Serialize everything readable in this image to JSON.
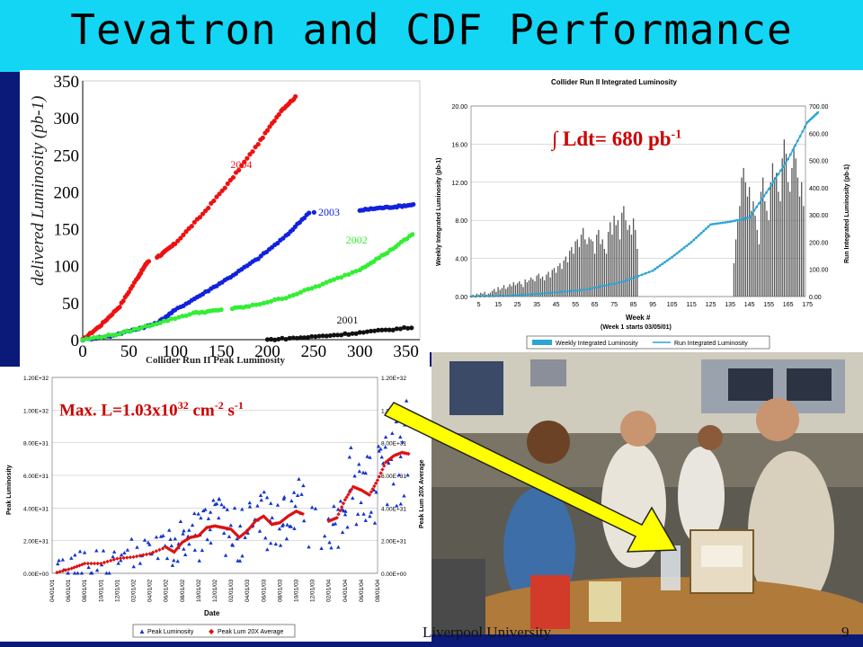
{
  "slide": {
    "title": "Tevatron and CDF Performance",
    "footer": "Liverpool University",
    "page_number": "9",
    "colors": {
      "title_bg": "#13d6f4",
      "slide_bg": "#0b1a78",
      "annotation_red": "#cc0000",
      "arrow_yellow": "#ffff00"
    }
  },
  "annotations": {
    "integrated": {
      "prefix": "∫ Ldt= 680 pb",
      "sup": "-1"
    },
    "peak": {
      "prefix": "Max. L=1.03x10",
      "sup1": "32",
      "mid": " cm",
      "sup2": "-2",
      "mid2": " s",
      "sup3": "-1"
    }
  },
  "chart_data": [
    {
      "type": "line",
      "title": "",
      "ylabel": "delivered Luminosity (pb-1)",
      "xlabel": "",
      "xlim": [
        0,
        365
      ],
      "ylim": [
        0,
        350
      ],
      "xticks": [
        "0",
        "50",
        "100",
        "150",
        "200",
        "250",
        "300",
        "350"
      ],
      "yticks": [
        "0",
        "50",
        "100",
        "150",
        "200",
        "250",
        "300",
        "350"
      ],
      "series": [
        {
          "name": "2004",
          "color": "#ee1111",
          "x": [
            0,
            20,
            40,
            60,
            70,
            85,
            100,
            130,
            160,
            190,
            215,
            232
          ],
          "y": [
            0,
            20,
            45,
            85,
            105,
            115,
            130,
            170,
            215,
            265,
            310,
            330
          ]
        },
        {
          "name": "2003",
          "color": "#1122dd",
          "x": [
            0,
            30,
            60,
            80,
            100,
            130,
            160,
            190,
            220,
            245,
            300,
            320,
            340,
            360
          ],
          "y": [
            0,
            5,
            15,
            22,
            40,
            62,
            85,
            110,
            140,
            172,
            175,
            178,
            180,
            183
          ]
        },
        {
          "name": "2002",
          "color": "#33ee33",
          "x": [
            0,
            40,
            80,
            120,
            150,
            180,
            220,
            260,
            300,
            330,
            360
          ],
          "y": [
            0,
            8,
            22,
            36,
            40,
            45,
            57,
            75,
            95,
            118,
            145
          ]
        },
        {
          "name": "2001",
          "color": "#111111",
          "x": [
            200,
            240,
            280,
            320,
            360
          ],
          "y": [
            0,
            3,
            7,
            12,
            17
          ]
        }
      ],
      "source_caption": "Collider Run II Peak Luminosity"
    },
    {
      "type": "bar",
      "title": "Collider Run II Integrated Luminosity",
      "xlabel": "Week #",
      "xlabel2": "(Week 1 starts 03/05/01)",
      "ylabel": "Weekly Integrated Luminosity (pb-1)",
      "ylabel_right": "Run Integrated Luminosity (pb-1)",
      "ylim": [
        0,
        20
      ],
      "ylim_right": [
        0,
        700
      ],
      "yticks": [
        "0.00",
        "4.00",
        "8.00",
        "12.00",
        "16.00",
        "20.00"
      ],
      "yticks_right": [
        "0.00",
        "100.00",
        "200.00",
        "300.00",
        "400.00",
        "500.00",
        "600.00",
        "700.00"
      ],
      "xticks": [
        "5",
        "15",
        "25",
        "35",
        "45",
        "55",
        "65",
        "75",
        "85",
        "95",
        "105",
        "115",
        "125",
        "135",
        "145",
        "155",
        "165",
        "175"
      ],
      "weekly_values": [
        0.1,
        0.2,
        0.1,
        0.3,
        0.2,
        0.4,
        0.3,
        0.5,
        0.2,
        0.3,
        0.4,
        0.6,
        0.8,
        0.5,
        1.0,
        0.7,
        0.9,
        1.2,
        0.8,
        1.0,
        1.3,
        1.1,
        1.5,
        1.2,
        1.4,
        1.6,
        1.3,
        1.0,
        1.8,
        1.5,
        1.7,
        2.0,
        1.8,
        1.6,
        2.2,
        2.4,
        1.9,
        2.1,
        1.7,
        2.3,
        2.6,
        2.0,
        2.8,
        3.0,
        2.5,
        3.2,
        3.5,
        2.9,
        3.8,
        4.2,
        3.6,
        4.8,
        5.2,
        4.5,
        5.8,
        6.0,
        5.2,
        6.5,
        7.2,
        6.0,
        5.5,
        6.2,
        6.0,
        5.8,
        4.5,
        6.5,
        7.0,
        5.5,
        6.0,
        5.0,
        4.5,
        6.8,
        7.8,
        6.5,
        8.5,
        7.5,
        8.0,
        6.0,
        8.8,
        9.5,
        8.0,
        7.0,
        7.5,
        6.5,
        8.2,
        7.0,
        5.0,
        0,
        0,
        0,
        0,
        0,
        0,
        0,
        0,
        0,
        0,
        0,
        0,
        0,
        0,
        0,
        0,
        0,
        0,
        0,
        0,
        0,
        0,
        0,
        0,
        0,
        0,
        0,
        0,
        0,
        0,
        0,
        0,
        0,
        0,
        0,
        0,
        0,
        0,
        0,
        0,
        0,
        0,
        0,
        0,
        0,
        0,
        0,
        0,
        0,
        3.5,
        6.0,
        8.0,
        9.5,
        12.5,
        13.5,
        12.0,
        10.5,
        11.5,
        9.0,
        10.0,
        8.5,
        7.0,
        5.5,
        11.0,
        12.5,
        10.0,
        9.0,
        8.0,
        12.0,
        14.0,
        12.5,
        13.0,
        11.0,
        10.0,
        14.5,
        16.5,
        15.0,
        12.0,
        11.0,
        13.5,
        15.8,
        14.5,
        12.5,
        10.5,
        12.0,
        9.5
      ],
      "run_integrated": [
        [
          1,
          0
        ],
        [
          20,
          3
        ],
        [
          40,
          12
        ],
        [
          60,
          25
        ],
        [
          80,
          55
        ],
        [
          95,
          95
        ],
        [
          105,
          145
        ],
        [
          115,
          200
        ],
        [
          125,
          265
        ],
        [
          135,
          275
        ],
        [
          145,
          290
        ],
        [
          155,
          395
        ],
        [
          165,
          505
        ],
        [
          175,
          640
        ],
        [
          181,
          680
        ]
      ],
      "legend": [
        "Weekly Integrated Luminosity",
        "Run Integrated Luminosity"
      ]
    },
    {
      "type": "scatter",
      "title": "",
      "xlabel": "Date",
      "ylabel": "Peak Luminosity",
      "ylabel_right": "Peak Lum 20X Average",
      "ylim": [
        0,
        1.2e+32
      ],
      "yticks": [
        "0.00E+00",
        "2.00E+31",
        "4.00E+31",
        "6.00E+31",
        "8.00E+31",
        "1.00E+32",
        "1.20E+32"
      ],
      "xticks": [
        "04/01/01",
        "06/01/01",
        "08/01/01",
        "10/01/01",
        "12/01/01",
        "02/01/02",
        "04/01/02",
        "06/01/02",
        "08/01/02",
        "10/01/02",
        "12/01/02",
        "02/01/03",
        "04/01/03",
        "06/01/03",
        "08/01/03",
        "10/01/03",
        "12/01/03",
        "02/01/04",
        "04/01/04",
        "06/01/04",
        "08/01/04"
      ],
      "average_points": [
        [
          0.3,
          0.05
        ],
        [
          1.2,
          0.3
        ],
        [
          2,
          0.6
        ],
        [
          3,
          0.6
        ],
        [
          4,
          0.9
        ],
        [
          5,
          1.0
        ],
        [
          6,
          1.2
        ],
        [
          7,
          1.6
        ],
        [
          7.5,
          1.3
        ],
        [
          8,
          1.9
        ],
        [
          8.5,
          2.2
        ],
        [
          9,
          2.3
        ],
        [
          9.5,
          2.8
        ],
        [
          10,
          2.9
        ],
        [
          10.5,
          2.8
        ],
        [
          11,
          2.7
        ],
        [
          11.5,
          2.2
        ],
        [
          12,
          2.6
        ],
        [
          12.5,
          3.2
        ],
        [
          13,
          3.5
        ],
        [
          13.5,
          3.0
        ],
        [
          14,
          3.1
        ],
        [
          14.5,
          3.5
        ],
        [
          15,
          3.8
        ],
        [
          15.5,
          3.6
        ],
        [
          17,
          3.2
        ],
        [
          17.5,
          3.4
        ],
        [
          18,
          4.5
        ],
        [
          18.5,
          5.3
        ],
        [
          19,
          5.1
        ],
        [
          19.5,
          4.8
        ],
        [
          20,
          5.7
        ],
        [
          20.5,
          6.8
        ],
        [
          21,
          7.2
        ],
        [
          21.5,
          7.4
        ],
        [
          22,
          7.3
        ]
      ],
      "avg_scale": "x1E+31",
      "legend": [
        "Peak Luminosity",
        "Peak Lum 20X Average"
      ]
    }
  ]
}
